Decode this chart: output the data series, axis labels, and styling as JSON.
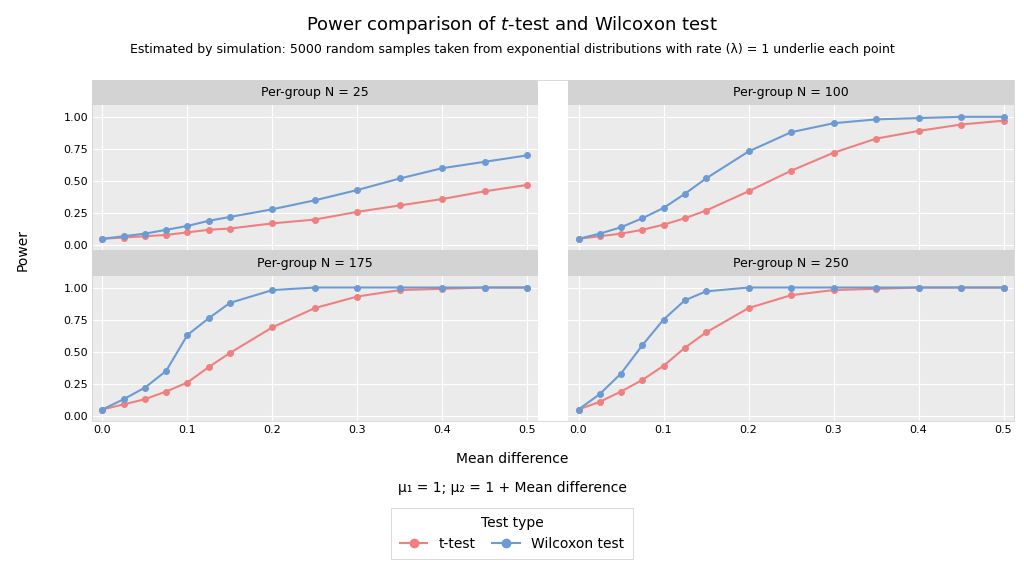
{
  "title": "Power comparison of $\\it{t}$-test and Wilcoxon test",
  "subtitle": "Estimated by simulation: 5000 random samples taken from exponential distributions with rate (λ) = 1 underlie each point",
  "xlabel": "Mean difference",
  "ylabel": "Power",
  "formula": "μ₁ = 1; μ₂ = 1 + Mean difference",
  "x_values": [
    0.0,
    0.025,
    0.05,
    0.075,
    0.1,
    0.125,
    0.15,
    0.2,
    0.25,
    0.3,
    0.35,
    0.4,
    0.45,
    0.5
  ],
  "panels": [
    {
      "label": "Per-group N = 25",
      "ttest": [
        0.05,
        0.06,
        0.07,
        0.08,
        0.1,
        0.12,
        0.13,
        0.17,
        0.2,
        0.26,
        0.31,
        0.36,
        0.42,
        0.47
      ],
      "wilcoxon": [
        0.05,
        0.07,
        0.09,
        0.12,
        0.15,
        0.19,
        0.22,
        0.28,
        0.35,
        0.43,
        0.52,
        0.6,
        0.65,
        0.7
      ]
    },
    {
      "label": "Per-group N = 100",
      "ttest": [
        0.05,
        0.07,
        0.09,
        0.12,
        0.16,
        0.21,
        0.27,
        0.42,
        0.58,
        0.72,
        0.83,
        0.89,
        0.94,
        0.97
      ],
      "wilcoxon": [
        0.05,
        0.09,
        0.14,
        0.21,
        0.29,
        0.4,
        0.52,
        0.73,
        0.88,
        0.95,
        0.98,
        0.99,
        1.0,
        1.0
      ]
    },
    {
      "label": "Per-group N = 175",
      "ttest": [
        0.05,
        0.09,
        0.13,
        0.19,
        0.26,
        0.38,
        0.49,
        0.69,
        0.84,
        0.93,
        0.98,
        0.99,
        1.0,
        1.0
      ],
      "wilcoxon": [
        0.05,
        0.13,
        0.22,
        0.35,
        0.63,
        0.76,
        0.88,
        0.98,
        1.0,
        1.0,
        1.0,
        1.0,
        1.0,
        1.0
      ]
    },
    {
      "label": "Per-group N = 250",
      "ttest": [
        0.05,
        0.11,
        0.19,
        0.28,
        0.39,
        0.53,
        0.65,
        0.84,
        0.94,
        0.98,
        0.99,
        1.0,
        1.0,
        1.0
      ],
      "wilcoxon": [
        0.05,
        0.17,
        0.33,
        0.55,
        0.75,
        0.9,
        0.97,
        1.0,
        1.0,
        1.0,
        1.0,
        1.0,
        1.0,
        1.0
      ]
    }
  ],
  "ttest_color": "#F08080",
  "wilcoxon_color": "#6B9BD2",
  "bg_color": "#EBEBEB",
  "panel_header_color": "#D3D3D3",
  "grid_color": "#FFFFFF",
  "outer_bg": "#FFFFFF",
  "yticks": [
    0.0,
    0.25,
    0.5,
    0.75,
    1.0
  ],
  "xticks": [
    0.0,
    0.1,
    0.2,
    0.3,
    0.4,
    0.5
  ],
  "title_fontsize": 13,
  "subtitle_fontsize": 9,
  "axis_label_fontsize": 10,
  "tick_fontsize": 8,
  "strip_fontsize": 9,
  "legend_fontsize": 10
}
